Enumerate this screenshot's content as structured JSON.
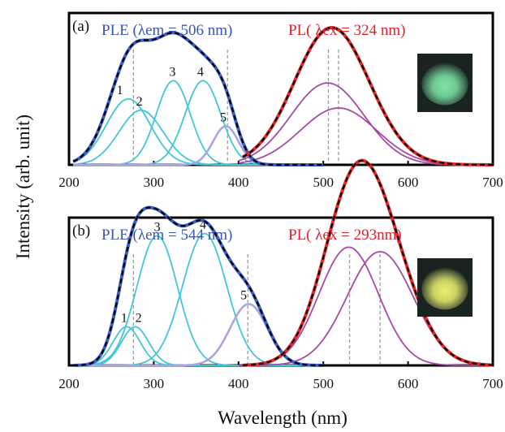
{
  "chart_data": {
    "type": "line",
    "ylabel": "Intensity (arb. unit)",
    "xlabel": "Wavelength (nm)",
    "xlim": [
      200,
      700
    ],
    "x_ticks": [
      "200",
      "300",
      "400",
      "500",
      "600",
      "700"
    ],
    "colors": {
      "ple_title": "#3a55b4",
      "pl_title": "#e0202a",
      "ple_fit": "#3b5ec8",
      "pl_fit": "#e8262a",
      "component_ple": "#42c6d8",
      "component_5": "#a8a6dc",
      "component_pl": "#a54aa6",
      "vline": "#9a9a9a",
      "envelope": "#000000"
    },
    "panels": [
      {
        "tag": "(a)",
        "ple_title": "PLE (λem = 506 nm)",
        "pl_title": "PL( λex = 324 nm)",
        "inset_color": "#7fe6a8",
        "ple_components": [
          {
            "label": "1",
            "center": 270,
            "sigma": 26,
            "amp": 0.29
          },
          {
            "label": "2",
            "center": 285,
            "sigma": 26,
            "amp": 0.24
          },
          {
            "label": "3",
            "center": 323,
            "sigma": 20,
            "amp": 0.37
          },
          {
            "label": "4",
            "center": 358,
            "sigma": 21,
            "amp": 0.37
          },
          {
            "label": "5",
            "center": 385,
            "sigma": 15,
            "amp": 0.17
          }
        ],
        "pl_components": [
          {
            "center": 505,
            "sigma": 43,
            "amp": 0.36
          },
          {
            "center": 518,
            "sigma": 45,
            "amp": 0.25
          }
        ],
        "vlines": [
          276,
          387,
          506,
          518
        ],
        "peak_label_pos": {
          "1": 260,
          "2": 283,
          "3": 322,
          "4": 355,
          "5": 382
        }
      },
      {
        "tag": "(b)",
        "ple_title": "PLE (λem = 544 nm)",
        "pl_title": "PL( λex = 293nm)",
        "inset_color": "#eaf070",
        "ple_components": [
          {
            "label": "1",
            "center": 268,
            "sigma": 16,
            "amp": 0.17
          },
          {
            "label": "2",
            "center": 278,
            "sigma": 16,
            "amp": 0.17
          },
          {
            "label": "3",
            "center": 304,
            "sigma": 24,
            "amp": 0.57
          },
          {
            "label": "4",
            "center": 360,
            "sigma": 26,
            "amp": 0.58
          },
          {
            "label": "5",
            "center": 412,
            "sigma": 22,
            "amp": 0.27
          }
        ],
        "pl_components": [
          {
            "center": 530,
            "sigma": 35,
            "amp": 0.52
          },
          {
            "center": 567,
            "sigma": 39,
            "amp": 0.5
          }
        ],
        "vlines": [
          276,
          411,
          531,
          567
        ],
        "peak_label_pos": {
          "1": 265,
          "2": 282,
          "3": 304,
          "4": 358,
          "5": 406
        }
      }
    ]
  }
}
